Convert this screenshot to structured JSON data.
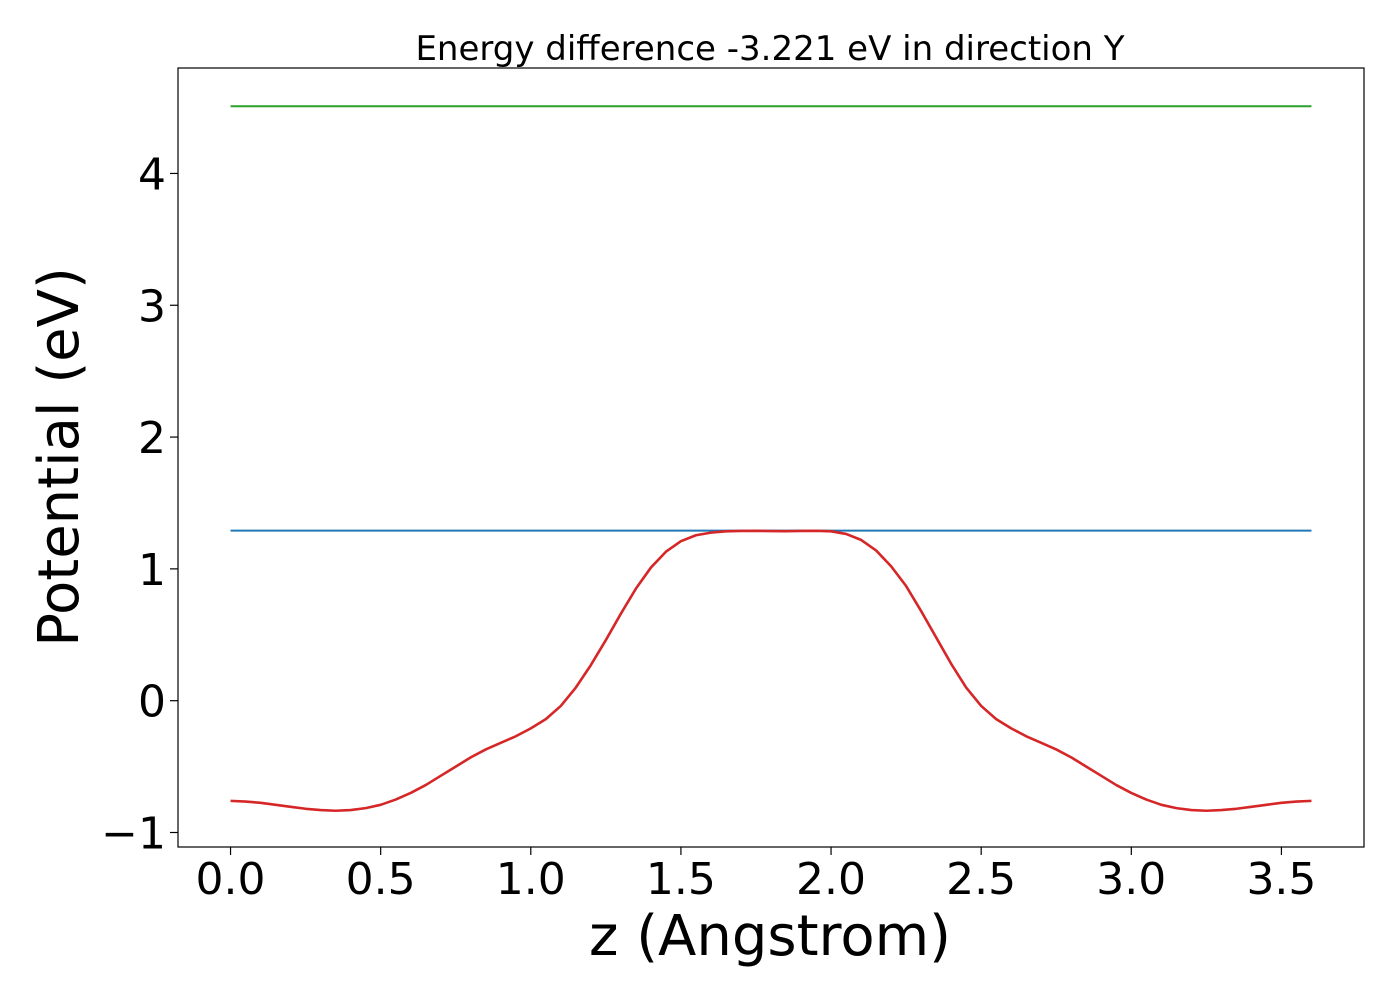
{
  "chart_data": {
    "type": "line",
    "title": "Energy difference -3.221 eV in direction Y",
    "xlabel": "z (Angstrom)",
    "ylabel": "Potential (eV)",
    "xlim": [
      -0.175,
      3.775
    ],
    "ylim": [
      -1.11,
      4.8
    ],
    "grid": false,
    "x_ticks": [
      {
        "value": 0.0,
        "label": "0.0"
      },
      {
        "value": 0.5,
        "label": "0.5"
      },
      {
        "value": 1.0,
        "label": "1.0"
      },
      {
        "value": 1.5,
        "label": "1.5"
      },
      {
        "value": 2.0,
        "label": "2.0"
      },
      {
        "value": 2.5,
        "label": "2.5"
      },
      {
        "value": 3.0,
        "label": "3.0"
      },
      {
        "value": 3.5,
        "label": "3.5"
      }
    ],
    "y_ticks": [
      {
        "value": -1,
        "label": "−1"
      },
      {
        "value": 0,
        "label": "0"
      },
      {
        "value": 1,
        "label": "1"
      },
      {
        "value": 2,
        "label": "2"
      },
      {
        "value": 3,
        "label": "3"
      },
      {
        "value": 4,
        "label": "4"
      }
    ],
    "series": [
      {
        "color": "#2ca02c",
        "x": [
          0.0,
          3.6
        ],
        "y": [
          4.51,
          4.51
        ]
      },
      {
        "color": "#1f77b4",
        "x": [
          0.0,
          3.6
        ],
        "y": [
          1.29,
          1.29
        ]
      },
      {
        "color": "#d62728",
        "x": [
          0.0,
          0.05,
          0.1,
          0.15,
          0.2,
          0.25,
          0.3,
          0.35,
          0.4,
          0.45,
          0.5,
          0.55,
          0.6,
          0.65,
          0.7,
          0.75,
          0.8,
          0.85,
          0.9,
          0.95,
          1.0,
          1.05,
          1.1,
          1.15,
          1.2,
          1.25,
          1.3,
          1.35,
          1.4,
          1.45,
          1.5,
          1.55,
          1.6,
          1.65,
          1.7,
          1.75,
          1.8,
          1.85,
          1.9,
          1.95,
          2.0,
          2.05,
          2.1,
          2.15,
          2.2,
          2.25,
          2.3,
          2.35,
          2.4,
          2.45,
          2.5,
          2.55,
          2.6,
          2.65,
          2.7,
          2.75,
          2.8,
          2.85,
          2.9,
          2.95,
          3.0,
          3.05,
          3.1,
          3.15,
          3.2,
          3.25,
          3.3,
          3.35,
          3.4,
          3.45,
          3.5,
          3.55,
          3.6
        ],
        "y": [
          -0.76,
          -0.765,
          -0.775,
          -0.79,
          -0.805,
          -0.82,
          -0.83,
          -0.835,
          -0.83,
          -0.815,
          -0.79,
          -0.75,
          -0.7,
          -0.64,
          -0.57,
          -0.5,
          -0.43,
          -0.37,
          -0.32,
          -0.27,
          -0.21,
          -0.14,
          -0.04,
          0.1,
          0.27,
          0.46,
          0.66,
          0.85,
          1.01,
          1.13,
          1.21,
          1.255,
          1.275,
          1.285,
          1.288,
          1.289,
          1.287,
          1.286,
          1.288,
          1.289,
          1.285,
          1.265,
          1.22,
          1.14,
          1.02,
          0.87,
          0.68,
          0.48,
          0.28,
          0.1,
          -0.04,
          -0.14,
          -0.21,
          -0.27,
          -0.32,
          -0.37,
          -0.43,
          -0.5,
          -0.57,
          -0.64,
          -0.7,
          -0.75,
          -0.79,
          -0.815,
          -0.83,
          -0.835,
          -0.83,
          -0.82,
          -0.805,
          -0.79,
          -0.775,
          -0.765,
          -0.76
        ]
      }
    ]
  }
}
